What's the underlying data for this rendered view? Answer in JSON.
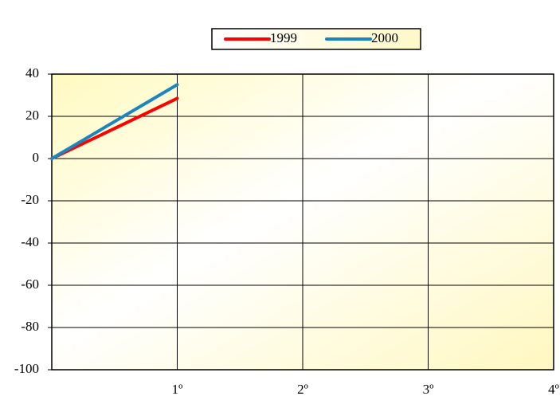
{
  "chart_data": {
    "type": "line",
    "categories": [
      null,
      "1º",
      "2º",
      "3º",
      "4º"
    ],
    "series": [
      {
        "name": "1999",
        "color": "#ff0000",
        "values": [
          0,
          28.5,
          null,
          null,
          null
        ]
      },
      {
        "name": "2000",
        "color": "#1a86c0",
        "values": [
          0,
          35,
          null,
          null,
          null
        ]
      }
    ],
    "ylim": [
      -100,
      40
    ],
    "yticks": [
      -100,
      -80,
      -60,
      -40,
      -20,
      0,
      20,
      40
    ],
    "grid": true,
    "legend": "top"
  }
}
